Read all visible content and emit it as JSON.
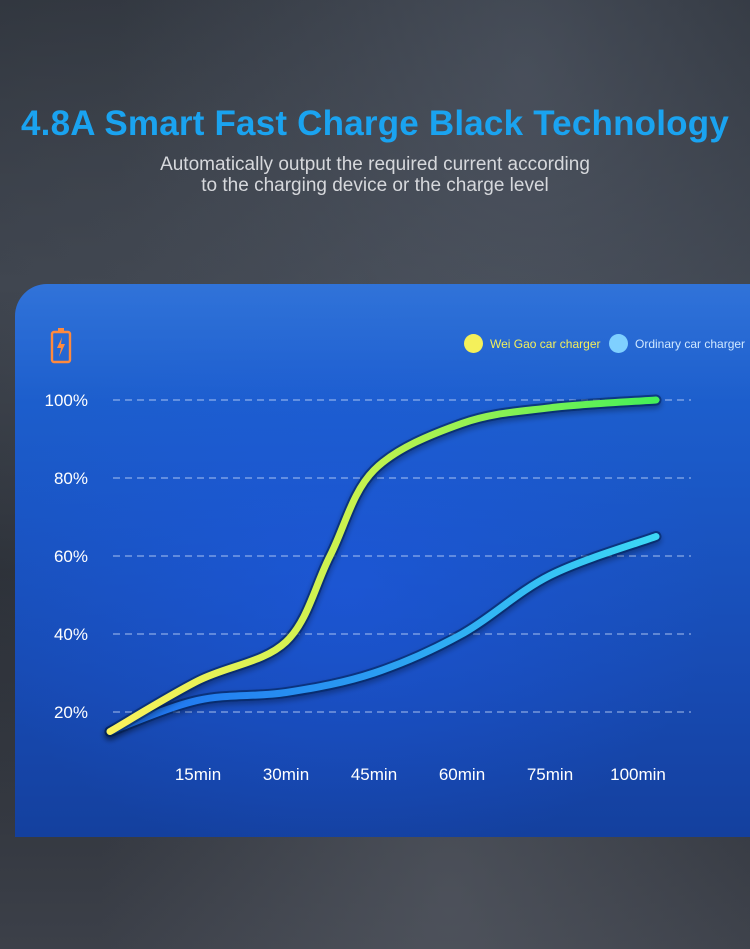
{
  "header": {
    "title": "4.8A Smart Fast Charge Black Technology",
    "subtitle_line1": "Automatically output the required current according",
    "subtitle_line2": "to the charging device or the charge level"
  },
  "legend": {
    "items": [
      {
        "label": "Wei Gao car charger",
        "color": "#f4f05a"
      },
      {
        "label": "Ordinary car charger",
        "color": "#7fd0ff"
      }
    ]
  },
  "icons": {
    "battery": "battery-charging-icon"
  },
  "chart_data": {
    "type": "line",
    "categories": [
      "15min",
      "30min",
      "45min",
      "60min",
      "75min",
      "100min"
    ],
    "y_tick_labels": [
      "20%",
      "40%",
      "60%",
      "80%",
      "100%"
    ],
    "y_ticks": [
      20,
      40,
      60,
      80,
      100
    ],
    "grid": "horizontal dashed",
    "legend_position": "top-right",
    "series": [
      {
        "name": "Wei Gao car charger",
        "colors": [
          "#fbf25c",
          "#36f05a"
        ],
        "x": [
          0,
          15,
          30,
          37.5,
          45,
          60,
          75,
          100
        ],
        "y": [
          15,
          28,
          38,
          60,
          82,
          94,
          98,
          100
        ]
      },
      {
        "name": "Ordinary car charger",
        "colors": [
          "#1f6ff0",
          "#3fe0f6"
        ],
        "x": [
          0,
          15,
          30,
          45,
          60,
          75,
          100
        ],
        "y": [
          15,
          23,
          25,
          30,
          40,
          55,
          65
        ]
      }
    ]
  }
}
